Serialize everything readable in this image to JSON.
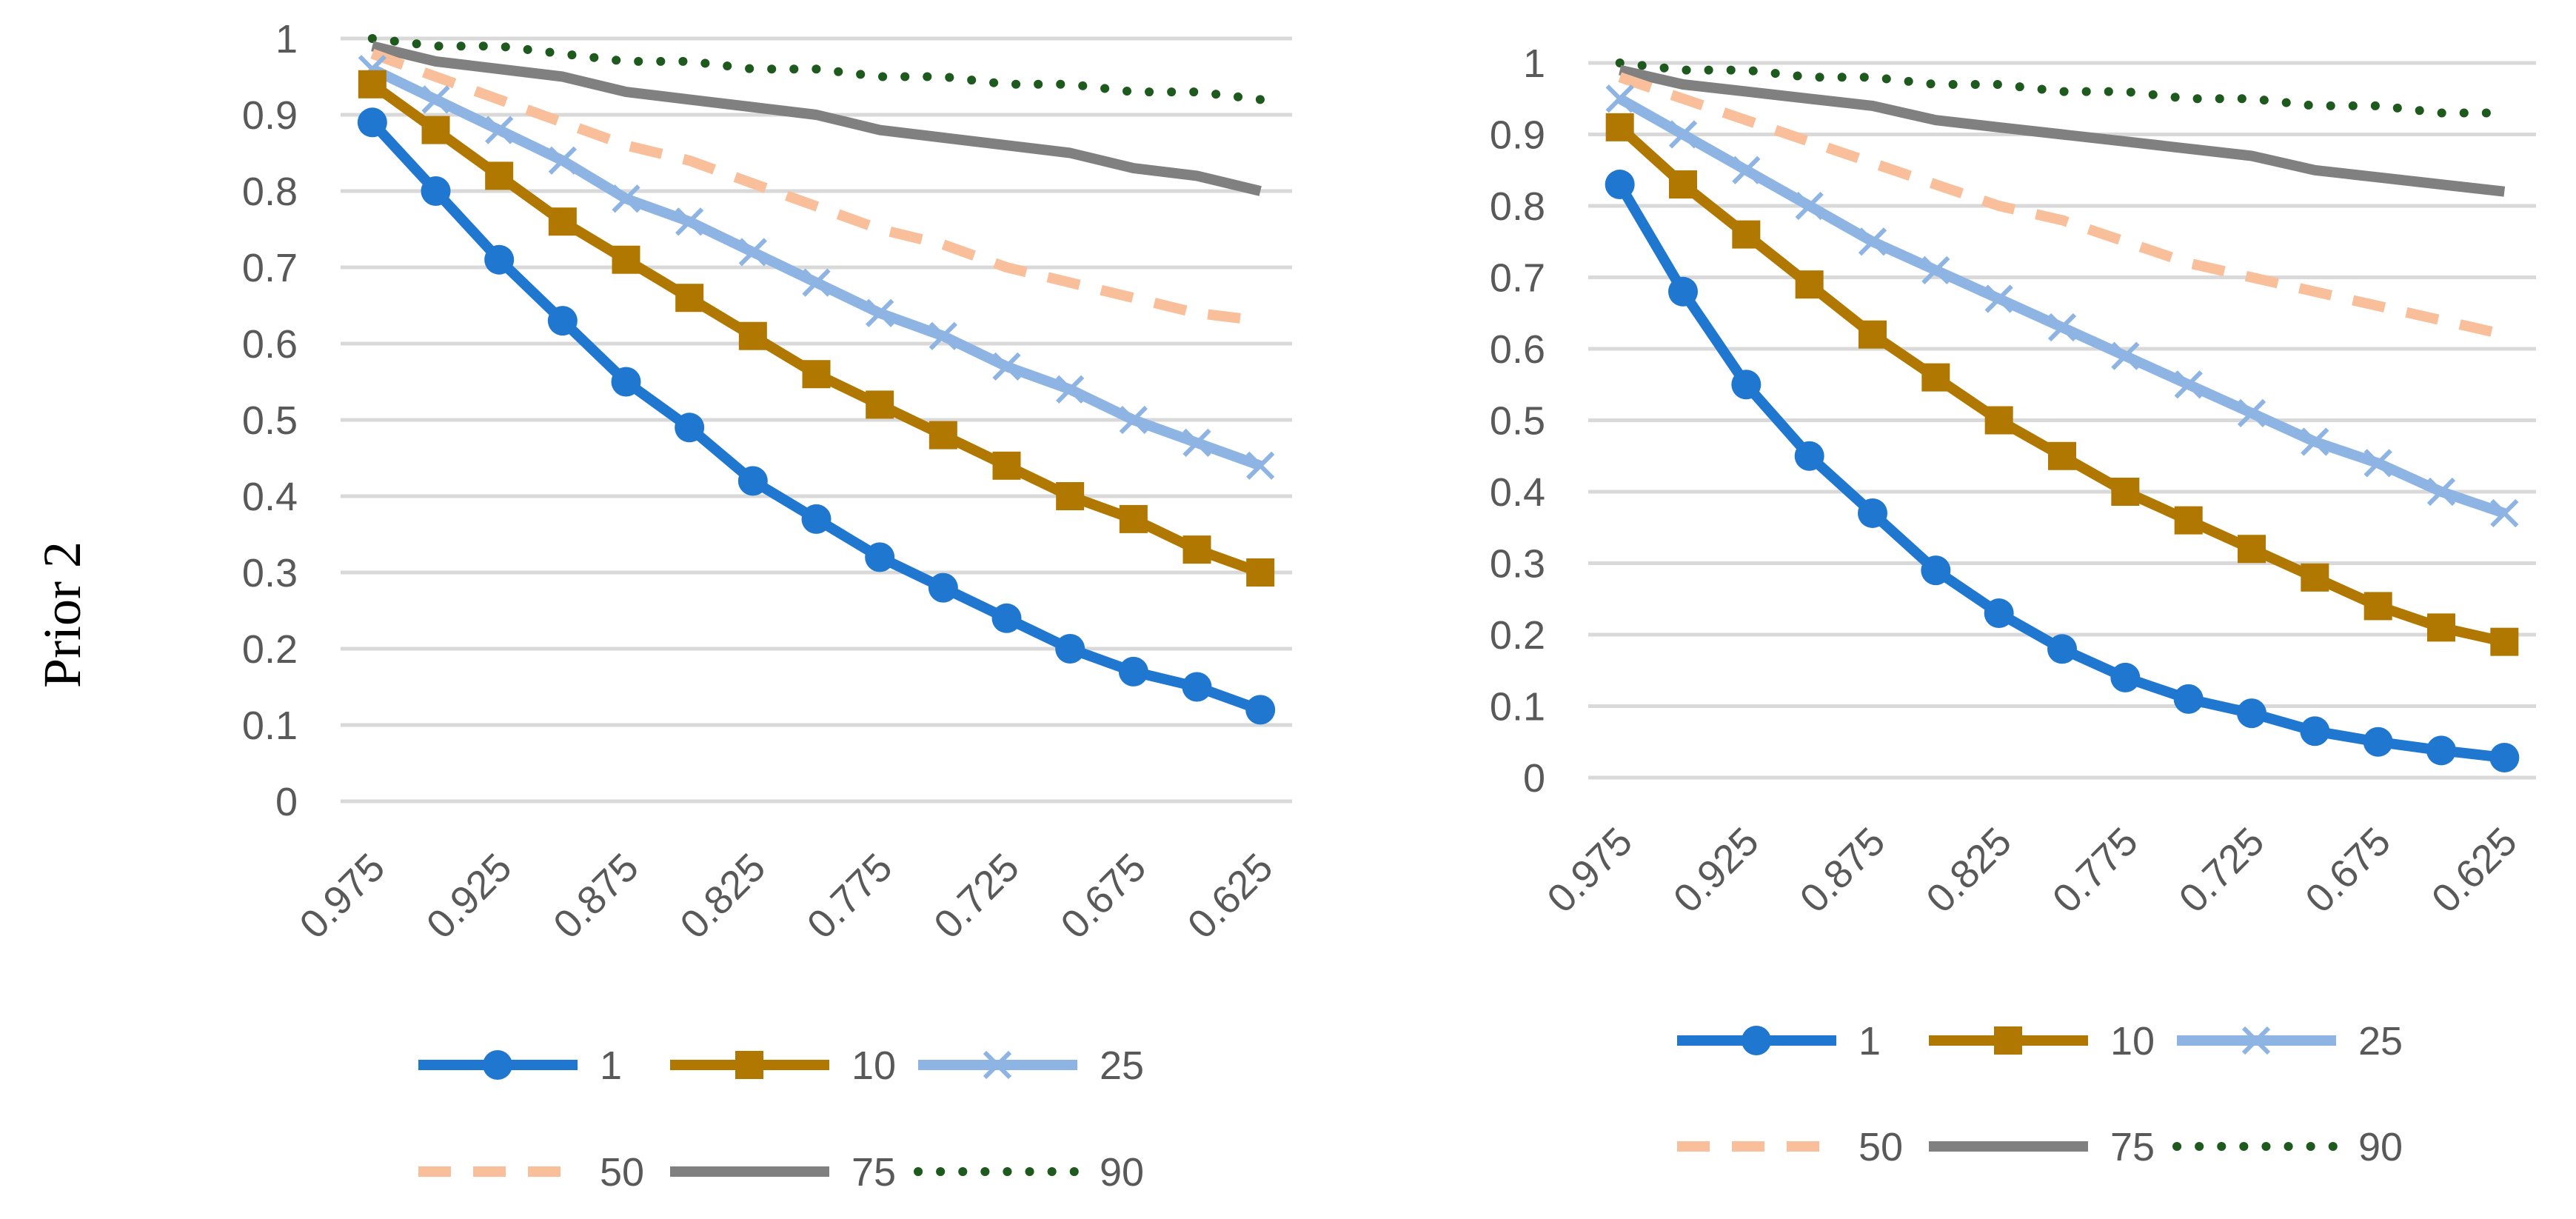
{
  "row_label": "Prior 2",
  "colors": {
    "s1": "#1f77d0",
    "s10": "#b07800",
    "s25": "#8eb4e3",
    "s50": "#f8bf9a",
    "s75": "#808080",
    "s90": "#1e5a1e",
    "grid": "#d9d9d9",
    "tick_text": "#595959"
  },
  "chart_data": [
    {
      "type": "line",
      "categories": [
        "0.975",
        "0.95",
        "0.925",
        "0.9",
        "0.875",
        "0.85",
        "0.825",
        "0.8",
        "0.775",
        "0.75",
        "0.725",
        "0.7",
        "0.675",
        "0.65",
        "0.625"
      ],
      "x_tick_labels": [
        "0.975",
        "0.925",
        "0.875",
        "0.825",
        "0.775",
        "0.725",
        "0.675",
        "0.625"
      ],
      "y_tick_labels": [
        "0",
        "0.1",
        "0.2",
        "0.3",
        "0.4",
        "0.5",
        "0.6",
        "0.7",
        "0.8",
        "0.9",
        "1"
      ],
      "ylim": [
        0,
        1
      ],
      "grid": true,
      "legend_position": "bottom",
      "series": [
        {
          "name": "1",
          "values": [
            0.89,
            0.8,
            0.71,
            0.63,
            0.55,
            0.49,
            0.42,
            0.37,
            0.32,
            0.28,
            0.24,
            0.2,
            0.17,
            0.15,
            0.12
          ]
        },
        {
          "name": "10",
          "values": [
            0.94,
            0.88,
            0.82,
            0.76,
            0.71,
            0.66,
            0.61,
            0.56,
            0.52,
            0.48,
            0.44,
            0.4,
            0.37,
            0.33,
            0.3
          ]
        },
        {
          "name": "25",
          "values": [
            0.96,
            0.92,
            0.88,
            0.84,
            0.79,
            0.76,
            0.72,
            0.68,
            0.64,
            0.61,
            0.57,
            0.54,
            0.5,
            0.47,
            0.44
          ]
        },
        {
          "name": "50",
          "values": [
            0.98,
            0.95,
            0.92,
            0.89,
            0.86,
            0.84,
            0.81,
            0.78,
            0.75,
            0.73,
            0.7,
            0.68,
            0.66,
            0.64,
            0.63
          ]
        },
        {
          "name": "75",
          "values": [
            0.99,
            0.97,
            0.96,
            0.95,
            0.93,
            0.92,
            0.91,
            0.9,
            0.88,
            0.87,
            0.86,
            0.85,
            0.83,
            0.82,
            0.8
          ]
        },
        {
          "name": "90",
          "values": [
            1.0,
            0.99,
            0.99,
            0.98,
            0.97,
            0.97,
            0.96,
            0.96,
            0.95,
            0.95,
            0.94,
            0.94,
            0.93,
            0.93,
            0.92
          ]
        }
      ]
    },
    {
      "type": "line",
      "categories": [
        "0.975",
        "0.95",
        "0.925",
        "0.9",
        "0.875",
        "0.85",
        "0.825",
        "0.8",
        "0.775",
        "0.75",
        "0.725",
        "0.7",
        "0.675",
        "0.65",
        "0.625"
      ],
      "x_tick_labels": [
        "0.975",
        "0.925",
        "0.875",
        "0.825",
        "0.775",
        "0.725",
        "0.675",
        "0.625"
      ],
      "y_tick_labels": [
        "0",
        "0.1",
        "0.2",
        "0.3",
        "0.4",
        "0.5",
        "0.6",
        "0.7",
        "0.8",
        "0.9",
        "1"
      ],
      "ylim": [
        0,
        1
      ],
      "grid": true,
      "legend_position": "bottom",
      "series": [
        {
          "name": "1",
          "values": [
            0.83,
            0.68,
            0.55,
            0.45,
            0.37,
            0.29,
            0.23,
            0.18,
            0.14,
            0.11,
            0.09,
            0.065,
            0.05,
            0.038,
            0.028
          ]
        },
        {
          "name": "10",
          "values": [
            0.91,
            0.83,
            0.76,
            0.69,
            0.62,
            0.56,
            0.5,
            0.45,
            0.4,
            0.36,
            0.32,
            0.28,
            0.24,
            0.21,
            0.19
          ]
        },
        {
          "name": "25",
          "values": [
            0.95,
            0.9,
            0.85,
            0.8,
            0.75,
            0.71,
            0.67,
            0.63,
            0.59,
            0.55,
            0.51,
            0.47,
            0.44,
            0.4,
            0.37
          ]
        },
        {
          "name": "50",
          "values": [
            0.98,
            0.95,
            0.92,
            0.89,
            0.86,
            0.83,
            0.8,
            0.78,
            0.75,
            0.72,
            0.7,
            0.68,
            0.66,
            0.64,
            0.62
          ]
        },
        {
          "name": "75",
          "values": [
            0.99,
            0.97,
            0.96,
            0.95,
            0.94,
            0.92,
            0.91,
            0.9,
            0.89,
            0.88,
            0.87,
            0.85,
            0.84,
            0.83,
            0.82
          ]
        },
        {
          "name": "90",
          "values": [
            1.0,
            0.99,
            0.99,
            0.98,
            0.98,
            0.97,
            0.97,
            0.96,
            0.96,
            0.95,
            0.95,
            0.94,
            0.94,
            0.93,
            0.93
          ]
        }
      ]
    }
  ]
}
